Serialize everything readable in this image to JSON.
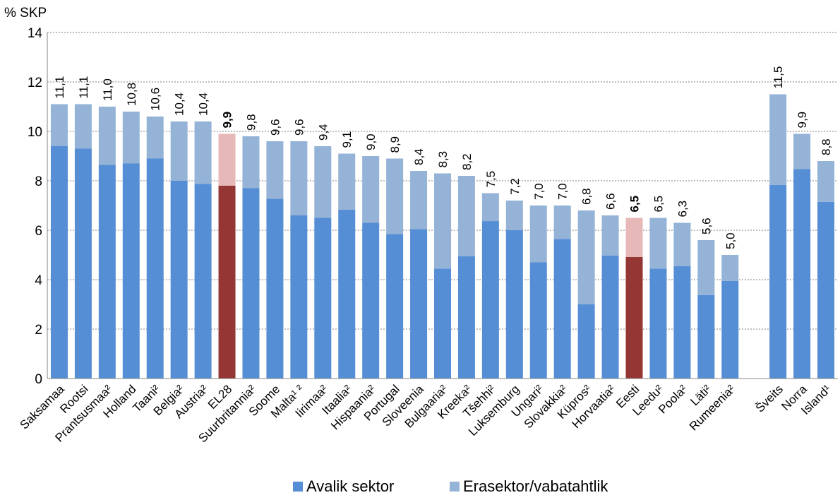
{
  "chart_data": {
    "type": "bar",
    "stacked": true,
    "ylabel": "% SKP",
    "ylim": [
      0,
      14
    ],
    "yticks": [
      0,
      2,
      4,
      6,
      8,
      10,
      12,
      14
    ],
    "grid": true,
    "legend_position": "bottom",
    "categories": [
      "Saksamaa",
      "Rootsi",
      "Prantsusmaa²",
      "Holland",
      "Taani²",
      "Belgia²",
      "Austria²",
      "EL28",
      "Suurbritannia²",
      "Soome",
      "Malta¹ ²",
      "Iirimaa²",
      "Itaalia²",
      "Hispaania²",
      "Portugal",
      "Sloveenia",
      "Bulgaaria²",
      "Kreeka²",
      "Tšehhi²",
      "Luksemburg",
      "Ungari²",
      "Slovakkia²",
      "Küpros²",
      "Horvaatia²",
      "Eesti",
      "Leedu²",
      "Poola²",
      "Läti²",
      "Rumeenia²",
      "",
      "Šveits",
      "Norra",
      "Island¹"
    ],
    "series": [
      {
        "name": "Avalik sektor",
        "color": "#558ED5",
        "highlight_color": "#943634",
        "values": [
          9.4,
          9.3,
          8.65,
          8.7,
          8.9,
          8.0,
          7.87,
          7.8,
          7.7,
          7.27,
          6.6,
          6.5,
          6.83,
          6.3,
          5.85,
          6.05,
          4.45,
          4.95,
          6.37,
          6.0,
          4.7,
          5.65,
          3.0,
          4.98,
          4.92,
          4.45,
          4.55,
          3.38,
          3.95,
          null,
          7.83,
          8.48,
          7.15
        ]
      },
      {
        "name": "Erasektor/vabatahtlik",
        "color": "#95B3D7",
        "highlight_color": "#E6B9B8",
        "values": [
          1.7,
          1.8,
          2.35,
          2.1,
          1.7,
          2.4,
          2.53,
          2.1,
          2.1,
          2.33,
          3.0,
          2.9,
          2.27,
          2.7,
          3.05,
          2.35,
          3.85,
          3.25,
          1.13,
          1.2,
          2.3,
          1.35,
          3.8,
          1.62,
          1.58,
          2.05,
          1.75,
          2.22,
          1.05,
          null,
          3.67,
          1.42,
          1.65
        ]
      }
    ],
    "totals": [
      "11,1",
      "11,1",
      "11,0",
      "10,8",
      "10,6",
      "10,4",
      "10,4",
      "9,9",
      "9,8",
      "9,6",
      "9,6",
      "9,4",
      "9,1",
      "9,0",
      "8,9",
      "8,4",
      "8,3",
      "8,2",
      "7,5",
      "7,2",
      "7,0",
      "7,0",
      "6,8",
      "6,6",
      "6,5",
      "6,5",
      "6,3",
      "5,6",
      "5,0",
      "",
      "11,5",
      "9,9",
      "8,8"
    ],
    "highlighted": [
      "EL28",
      "Eesti"
    ]
  }
}
